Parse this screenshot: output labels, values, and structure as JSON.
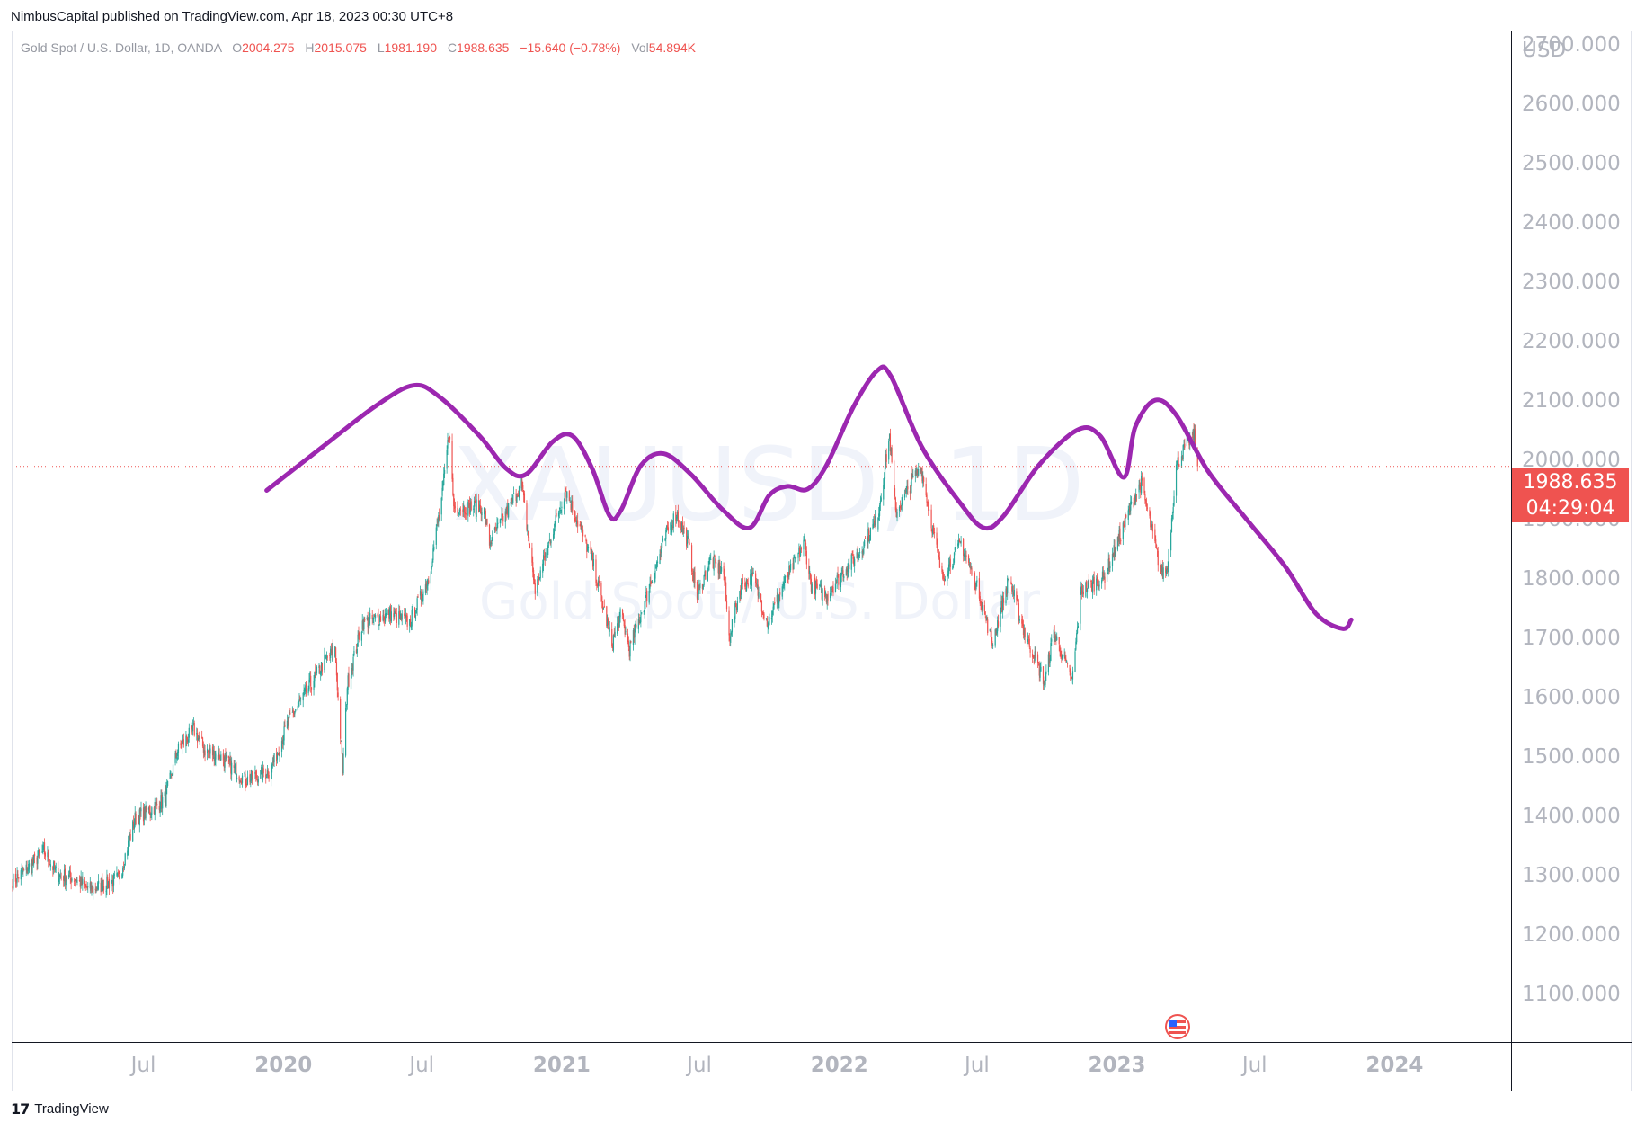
{
  "header": {
    "published": "NimbusCapital published on TradingView.com, Apr 18, 2023 00:30 UTC+8"
  },
  "legend": {
    "symbol": "Gold Spot / U.S. Dollar, 1D, OANDA",
    "o_label": "O",
    "o_value": "2004.275",
    "h_label": "H",
    "h_value": "2015.075",
    "l_label": "L",
    "l_value": "1981.190",
    "c_label": "C",
    "c_value": "1988.635",
    "change": "−15.640 (−0.78%)",
    "vol_label": "Vol",
    "vol_value": "54.894K"
  },
  "watermark": {
    "symbol": "XAUUSD, 1D",
    "name": "Gold Spot / U.S. Dollar"
  },
  "price_tag": {
    "price": "1988.635",
    "countdown": "04:29:04"
  },
  "footer": {
    "brand": "TradingView",
    "logo_icon": "tradingview-logo-icon"
  },
  "colors": {
    "up": "#26a69a",
    "down": "#ef5350",
    "projection": "#9c27b0",
    "axis_text": "#b2b5be",
    "price_tag": "#ef5350"
  },
  "chart_data": {
    "type": "candlestick",
    "currency": "USD",
    "ylim": [
      1020,
      2720
    ],
    "y_ticks": [
      1100,
      1200,
      1300,
      1400,
      1500,
      1600,
      1700,
      1800,
      1900,
      2000,
      2100,
      2200,
      2300,
      2400,
      2500,
      2600,
      2700
    ],
    "y_tick_labels": [
      "1100.000",
      "1200.000",
      "1300.000",
      "1400.000",
      "1500.000",
      "1600.000",
      "1700.000",
      "1800.000",
      "1900.000",
      "2000.000",
      "2100.000",
      "2200.000",
      "2300.000",
      "2400.000",
      "2500.000",
      "2600.000",
      "2700.000"
    ],
    "x_range": [
      "2019-01-10",
      "2024-06-01"
    ],
    "x_ticks": [
      {
        "date": "2019-07-01",
        "label": "Jul",
        "bold": false
      },
      {
        "date": "2020-01-01",
        "label": "2020",
        "bold": true
      },
      {
        "date": "2020-07-01",
        "label": "Jul",
        "bold": false
      },
      {
        "date": "2021-01-01",
        "label": "2021",
        "bold": true
      },
      {
        "date": "2021-07-01",
        "label": "Jul",
        "bold": false
      },
      {
        "date": "2022-01-01",
        "label": "2022",
        "bold": true
      },
      {
        "date": "2022-07-01",
        "label": "Jul",
        "bold": false
      },
      {
        "date": "2023-01-01",
        "label": "2023",
        "bold": true
      },
      {
        "date": "2023-07-01",
        "label": "Jul",
        "bold": false
      },
      {
        "date": "2024-01-01",
        "label": "2024",
        "bold": true
      }
    ],
    "last_price": 1988.635,
    "price_path": [
      [
        "2019-01-10",
        1290
      ],
      [
        "2019-01-25",
        1305
      ],
      [
        "2019-02-20",
        1340
      ],
      [
        "2019-03-10",
        1300
      ],
      [
        "2019-04-01",
        1295
      ],
      [
        "2019-04-20",
        1275
      ],
      [
        "2019-05-15",
        1285
      ],
      [
        "2019-05-30",
        1295
      ],
      [
        "2019-06-20",
        1395
      ],
      [
        "2019-07-10",
        1410
      ],
      [
        "2019-07-30",
        1430
      ],
      [
        "2019-08-15",
        1510
      ],
      [
        "2019-09-05",
        1545
      ],
      [
        "2019-09-20",
        1510
      ],
      [
        "2019-10-10",
        1500
      ],
      [
        "2019-11-12",
        1460
      ],
      [
        "2019-12-15",
        1475
      ],
      [
        "2020-01-08",
        1560
      ],
      [
        "2020-02-24",
        1660
      ],
      [
        "2020-03-09",
        1680
      ],
      [
        "2020-03-19",
        1475
      ],
      [
        "2020-03-25",
        1620
      ],
      [
        "2020-04-14",
        1725
      ],
      [
        "2020-05-20",
        1740
      ],
      [
        "2020-06-15",
        1725
      ],
      [
        "2020-07-10",
        1800
      ],
      [
        "2020-07-28",
        1940
      ],
      [
        "2020-08-06",
        2050
      ],
      [
        "2020-08-12",
        1920
      ],
      [
        "2020-09-20",
        1920
      ],
      [
        "2020-09-28",
        1860
      ],
      [
        "2020-10-20",
        1910
      ],
      [
        "2020-11-09",
        1960
      ],
      [
        "2020-11-27",
        1780
      ],
      [
        "2020-12-20",
        1880
      ],
      [
        "2021-01-06",
        1950
      ],
      [
        "2021-02-10",
        1830
      ],
      [
        "2021-03-08",
        1690
      ],
      [
        "2021-03-20",
        1740
      ],
      [
        "2021-03-31",
        1680
      ],
      [
        "2021-04-25",
        1780
      ],
      [
        "2021-05-20",
        1880
      ],
      [
        "2021-06-01",
        1910
      ],
      [
        "2021-06-16",
        1860
      ],
      [
        "2021-06-28",
        1770
      ],
      [
        "2021-07-15",
        1830
      ],
      [
        "2021-08-02",
        1810
      ],
      [
        "2021-08-09",
        1700
      ],
      [
        "2021-08-25",
        1790
      ],
      [
        "2021-09-10",
        1800
      ],
      [
        "2021-09-29",
        1725
      ],
      [
        "2021-10-20",
        1790
      ],
      [
        "2021-11-16",
        1860
      ],
      [
        "2021-11-25",
        1790
      ],
      [
        "2021-12-15",
        1770
      ],
      [
        "2022-01-05",
        1810
      ],
      [
        "2022-01-25",
        1840
      ],
      [
        "2022-02-20",
        1900
      ],
      [
        "2022-03-08",
        2040
      ],
      [
        "2022-03-16",
        1910
      ],
      [
        "2022-04-18",
        1990
      ],
      [
        "2022-05-16",
        1800
      ],
      [
        "2022-06-10",
        1860
      ],
      [
        "2022-07-05",
        1770
      ],
      [
        "2022-07-21",
        1690
      ],
      [
        "2022-08-12",
        1800
      ],
      [
        "2022-09-01",
        1710
      ],
      [
        "2022-09-28",
        1625
      ],
      [
        "2022-10-10",
        1710
      ],
      [
        "2022-11-03",
        1625
      ],
      [
        "2022-11-15",
        1780
      ],
      [
        "2022-12-15",
        1800
      ],
      [
        "2023-01-25",
        1940
      ],
      [
        "2023-02-02",
        1960
      ],
      [
        "2023-02-28",
        1810
      ],
      [
        "2023-03-08",
        1815
      ],
      [
        "2023-03-20",
        1990
      ],
      [
        "2023-04-04",
        2030
      ],
      [
        "2023-04-13",
        2040
      ],
      [
        "2023-04-17",
        1990
      ]
    ],
    "projection_curve": [
      [
        "2019-12-10",
        1948
      ],
      [
        "2020-02-20",
        2020
      ],
      [
        "2020-05-01",
        2090
      ],
      [
        "2020-06-20",
        2125
      ],
      [
        "2020-07-25",
        2105
      ],
      [
        "2020-09-15",
        2040
      ],
      [
        "2020-10-20",
        1985
      ],
      [
        "2020-11-15",
        1975
      ],
      [
        "2020-12-20",
        2030
      ],
      [
        "2021-01-15",
        2040
      ],
      [
        "2021-02-10",
        1985
      ],
      [
        "2021-03-05",
        1905
      ],
      [
        "2021-03-20",
        1915
      ],
      [
        "2021-04-15",
        1990
      ],
      [
        "2021-05-15",
        2010
      ],
      [
        "2021-06-20",
        1975
      ],
      [
        "2021-08-01",
        1915
      ],
      [
        "2021-09-05",
        1885
      ],
      [
        "2021-10-01",
        1940
      ],
      [
        "2021-10-25",
        1955
      ],
      [
        "2021-11-20",
        1950
      ],
      [
        "2021-12-15",
        1990
      ],
      [
        "2022-01-20",
        2090
      ],
      [
        "2022-02-20",
        2150
      ],
      [
        "2022-03-10",
        2140
      ],
      [
        "2022-04-20",
        2020
      ],
      [
        "2022-06-10",
        1925
      ],
      [
        "2022-07-10",
        1885
      ],
      [
        "2022-08-05",
        1905
      ],
      [
        "2022-09-20",
        1990
      ],
      [
        "2022-11-10",
        2050
      ],
      [
        "2022-12-10",
        2040
      ],
      [
        "2023-01-10",
        1970
      ],
      [
        "2023-01-25",
        2055
      ],
      [
        "2023-02-20",
        2100
      ],
      [
        "2023-03-20",
        2075
      ],
      [
        "2023-05-01",
        1980
      ],
      [
        "2023-06-20",
        1900
      ],
      [
        "2023-08-10",
        1820
      ],
      [
        "2023-09-20",
        1740
      ],
      [
        "2023-10-25",
        1715
      ],
      [
        "2023-11-05",
        1730
      ]
    ]
  }
}
